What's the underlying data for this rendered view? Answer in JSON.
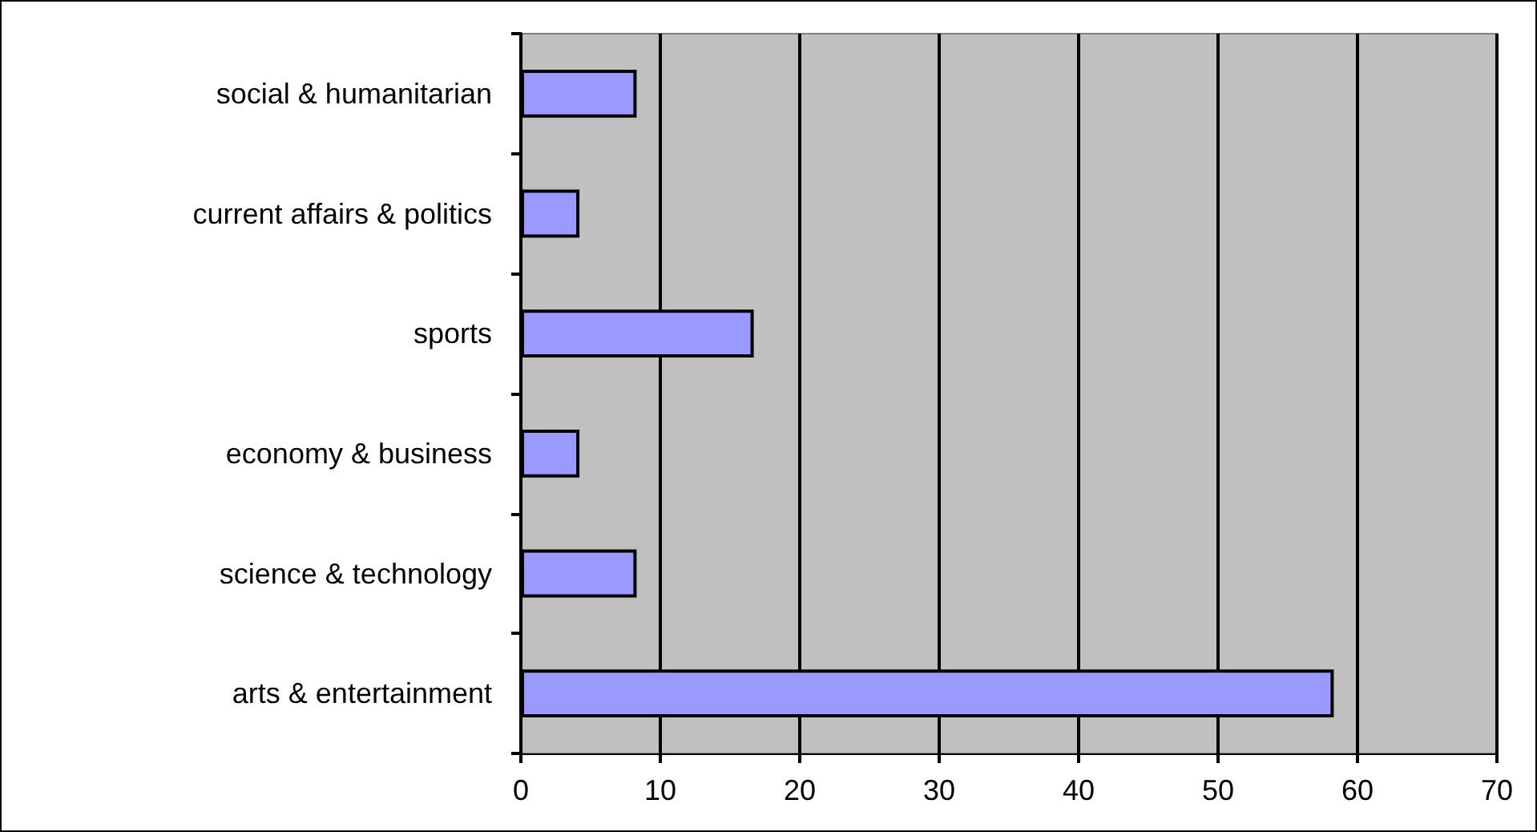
{
  "chart_data": {
    "type": "bar",
    "orientation": "horizontal",
    "categories": [
      "social & humanitarian",
      "current affairs & politics",
      "sports",
      "economy & business",
      "science & technology",
      "arts & entertainment"
    ],
    "values": [
      8.3,
      4.2,
      16.7,
      4.2,
      8.3,
      58.3
    ],
    "color": "#9999ff",
    "xlim": [
      0,
      70
    ],
    "xticks": [
      0,
      10,
      20,
      30,
      40,
      50,
      60,
      70
    ],
    "grid": "x"
  }
}
